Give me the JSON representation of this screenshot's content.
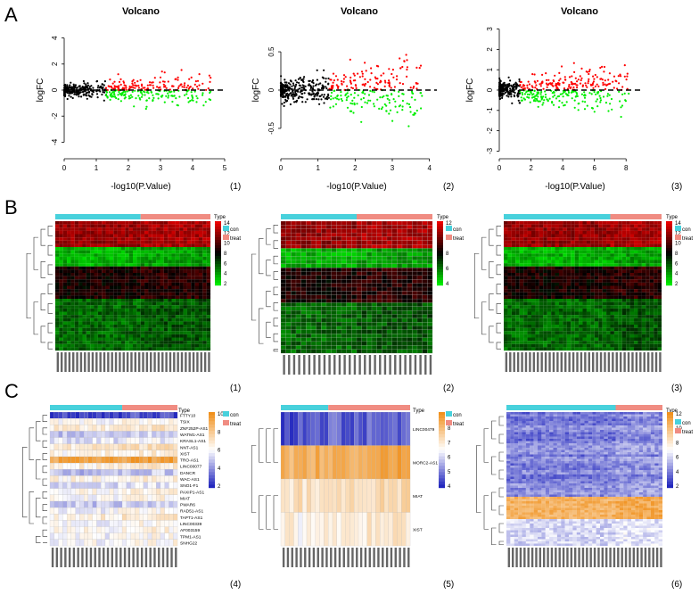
{
  "panel_labels": {
    "a": "A",
    "b": "B",
    "c": "C"
  },
  "sublabels": [
    "(1)",
    "(2)",
    "(3)",
    "(1)",
    "(2)",
    "(3)",
    "(4)",
    "(5)",
    "(6)"
  ],
  "colors": {
    "up": "#ff0000",
    "down": "#00ee00",
    "ns": "#000000",
    "con": "#48d1dc",
    "treat": "#f08c82"
  },
  "chart_data": [
    {
      "type": "scatter",
      "title": "Volcano",
      "xlabel": "-log10(P.Value)",
      "ylabel": "logFC",
      "xlim": [
        0,
        5
      ],
      "ylim": [
        -5,
        5
      ],
      "xticks": [
        0,
        1,
        2,
        3,
        4,
        5
      ],
      "yticks": [
        -4,
        -2,
        0,
        2,
        4
      ],
      "threshold_x": 1.3,
      "threshold_y": 0,
      "xmax_data": 4.8,
      "spread": 1.8
    },
    {
      "type": "scatter",
      "title": "Volcano",
      "xlabel": "-log10(P.Value)",
      "ylabel": "logFC",
      "xlim": [
        0,
        4.2
      ],
      "ylim": [
        -0.85,
        0.85
      ],
      "xticks": [
        0,
        1,
        2,
        3,
        4
      ],
      "yticks": [
        -0.5,
        0,
        0.5
      ],
      "threshold_x": 1.3,
      "threshold_y": 0,
      "xmax_data": 4.0,
      "spread": 0.55
    },
    {
      "type": "scatter",
      "title": "Volcano",
      "xlabel": "-log10(P.Value)",
      "ylabel": "logFC",
      "xlim": [
        0,
        9
      ],
      "ylim": [
        -3.2,
        3.2
      ],
      "xticks": [
        0,
        2,
        4,
        6,
        8
      ],
      "yticks": [
        -3,
        -2,
        -1,
        0,
        1,
        2,
        3
      ],
      "threshold_x": 1.3,
      "threshold_y": 0,
      "xmax_data": 8.6,
      "spread": 1.7
    },
    {
      "type": "heatmap",
      "palette": "greenred",
      "legend_ticks": [
        14,
        12,
        10,
        8,
        6,
        4,
        2
      ],
      "group_label": "Type",
      "groups": [
        "con",
        "treat"
      ],
      "con_fraction": 0.56
    },
    {
      "type": "heatmap",
      "palette": "greenred",
      "legend_ticks": [
        12,
        10,
        8,
        6,
        4
      ],
      "group_label": "Type",
      "groups": [
        "con",
        "treat"
      ],
      "con_fraction": 0.5
    },
    {
      "type": "heatmap",
      "palette": "greenred",
      "legend_ticks": [
        14,
        12,
        10,
        8,
        6,
        4,
        2
      ],
      "group_label": "Type",
      "groups": [
        "con",
        "treat"
      ],
      "con_fraction": 0.68
    },
    {
      "type": "heatmap",
      "palette": "bluewhiteorange",
      "legend_ticks": [
        10,
        8,
        6,
        4,
        2
      ],
      "group_label": "Type",
      "groups": [
        "con",
        "treat"
      ],
      "con_fraction": 0.57,
      "row_labels": [
        "FTTY10",
        "TSIX",
        "ZNF252P-AS1",
        "WATM1-AS1",
        "KRASL1-AS1",
        "NNT-AS1",
        "XIST",
        "TRO-AS1",
        "LINC00077",
        "DANCR",
        "WAC-AS1",
        "SNO1-F1",
        "PAXIP1-AS1",
        "MIAT",
        "PWAR6",
        "RAD51-AS1",
        "TAPT1-AS1",
        "LINC00339",
        "AF003159",
        "TPM1-AS1",
        "SNHG22"
      ]
    },
    {
      "type": "heatmap",
      "palette": "bluewhiteorange",
      "legend_ticks": [
        9,
        8,
        7,
        6,
        5,
        4
      ],
      "group_label": "Type",
      "groups": [
        "con",
        "treat"
      ],
      "con_fraction": 0.35,
      "row_labels": [
        "LINC00479",
        "MORC2-AS1",
        "MIAT",
        "XIST"
      ]
    },
    {
      "type": "heatmap",
      "palette": "bluewhiteorange",
      "legend_ticks": [
        12,
        10,
        8,
        6,
        4,
        2
      ],
      "group_label": "Type",
      "groups": [
        "con",
        "treat"
      ],
      "con_fraction": 0.7
    }
  ]
}
